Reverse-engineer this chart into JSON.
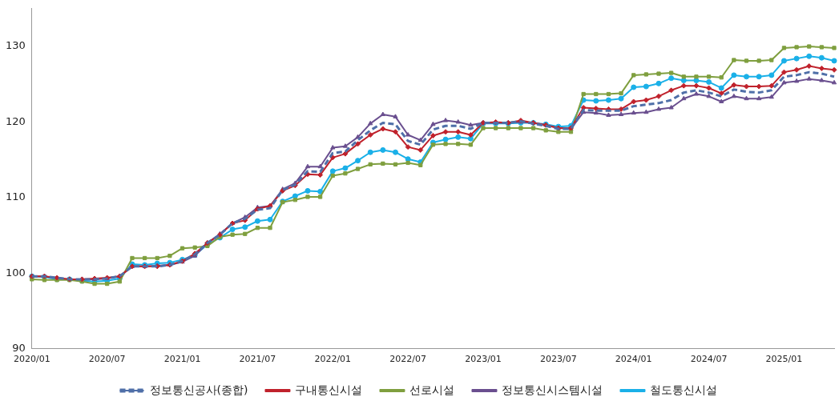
{
  "chart_data": {
    "type": "line",
    "categories": [
      "2020/01",
      null,
      null,
      null,
      null,
      null,
      "2020/07",
      null,
      null,
      null,
      null,
      null,
      "2021/01",
      null,
      null,
      null,
      null,
      null,
      "2021/07",
      null,
      null,
      null,
      null,
      null,
      "2022/01",
      null,
      null,
      null,
      null,
      null,
      "2022/07",
      null,
      null,
      null,
      null,
      null,
      "2023/01",
      null,
      null,
      null,
      null,
      null,
      "2023/07",
      null,
      null,
      null,
      null,
      null,
      "2024/01",
      null,
      null,
      null,
      null,
      null,
      "2024/07",
      null,
      null,
      null,
      null,
      null,
      "2025/01",
      null,
      null,
      null,
      null
    ],
    "ylim": [
      90,
      135
    ],
    "yticks": [
      90,
      100,
      110,
      120,
      130
    ],
    "grid": false,
    "legend": "bottom",
    "series": [
      {
        "name": "정보통신공사(종합)",
        "color": "#4f6fa8",
        "line_style": "dashed",
        "marker": "none",
        "values": [
          99.6,
          99.6,
          99.4,
          99.2,
          99.2,
          99.2,
          99.3,
          99.6,
          100.9,
          100.9,
          100.9,
          101.1,
          101.6,
          102.5,
          104.0,
          105.1,
          106.6,
          107.2,
          108.4,
          108.6,
          111.0,
          111.7,
          113.5,
          113.4,
          115.9,
          116.1,
          117.6,
          118.9,
          119.9,
          119.7,
          117.5,
          117.0,
          119.0,
          119.5,
          119.5,
          119.1,
          119.9,
          119.9,
          119.9,
          120.1,
          119.8,
          119.5,
          119.1,
          119.1,
          121.6,
          121.5,
          121.5,
          121.5,
          122.1,
          122.3,
          122.5,
          122.9,
          123.9,
          124.2,
          123.9,
          123.4,
          124.3,
          124.0,
          123.9,
          124.2,
          126.0,
          126.2,
          126.6,
          126.4,
          126.0
        ]
      },
      {
        "name": "구내통신시설",
        "color": "#c0222c",
        "line_style": "solid",
        "marker": "diamond",
        "values": [
          99.6,
          99.6,
          99.4,
          99.2,
          99.2,
          99.3,
          99.4,
          99.6,
          100.9,
          100.9,
          100.9,
          101.1,
          101.6,
          102.6,
          104.0,
          105.1,
          106.6,
          107.0,
          108.5,
          108.9,
          110.9,
          111.6,
          113.1,
          113.0,
          115.3,
          115.8,
          117.1,
          118.3,
          119.1,
          118.7,
          116.7,
          116.3,
          118.2,
          118.7,
          118.7,
          118.3,
          119.9,
          120.0,
          119.9,
          120.2,
          119.9,
          119.6,
          119.2,
          119.2,
          121.9,
          121.8,
          121.7,
          121.7,
          122.7,
          122.9,
          123.4,
          124.2,
          124.8,
          124.8,
          124.5,
          123.8,
          124.9,
          124.7,
          124.7,
          124.8,
          126.6,
          126.9,
          127.4,
          127.1,
          126.9
        ]
      },
      {
        "name": "선로시설",
        "color": "#7f9f3f",
        "line_style": "solid",
        "marker": "square",
        "values": [
          99.2,
          99.1,
          99.1,
          99.1,
          98.9,
          98.6,
          98.6,
          98.9,
          102.0,
          102.0,
          102.0,
          102.3,
          103.3,
          103.4,
          103.6,
          104.8,
          105.1,
          105.2,
          106.0,
          106.0,
          109.4,
          109.7,
          110.1,
          110.1,
          112.9,
          113.2,
          113.8,
          114.4,
          114.5,
          114.4,
          114.6,
          114.3,
          117.0,
          117.1,
          117.1,
          117.0,
          119.2,
          119.2,
          119.2,
          119.2,
          119.2,
          118.9,
          118.7,
          118.7,
          123.7,
          123.7,
          123.7,
          123.8,
          126.2,
          126.3,
          126.4,
          126.5,
          126.0,
          126.0,
          126.0,
          125.9,
          128.2,
          128.1,
          128.1,
          128.2,
          129.8,
          129.9,
          130.0,
          129.9,
          129.8
        ]
      },
      {
        "name": "정보통신시스템시설",
        "color": "#6a4f8f",
        "line_style": "solid",
        "marker": "triangle",
        "values": [
          99.6,
          99.6,
          99.3,
          99.2,
          99.2,
          99.2,
          99.3,
          99.6,
          100.9,
          100.9,
          101.0,
          101.1,
          101.5,
          102.3,
          104.0,
          105.2,
          106.6,
          107.4,
          108.7,
          108.9,
          111.1,
          111.9,
          114.1,
          114.1,
          116.6,
          116.8,
          118.0,
          119.8,
          121.0,
          120.7,
          118.3,
          117.6,
          119.7,
          120.2,
          120.0,
          119.6,
          119.9,
          119.9,
          119.9,
          120.0,
          119.9,
          119.6,
          119.2,
          119.1,
          121.3,
          121.2,
          120.9,
          121.0,
          121.2,
          121.3,
          121.7,
          121.9,
          123.1,
          123.7,
          123.4,
          122.7,
          123.4,
          123.1,
          123.1,
          123.3,
          125.2,
          125.4,
          125.7,
          125.5,
          125.2
        ]
      },
      {
        "name": "철도통신시설",
        "color": "#1ab0e8",
        "line_style": "solid",
        "marker": "circle",
        "values": [
          99.6,
          99.5,
          99.2,
          99.2,
          99.0,
          98.9,
          99.0,
          99.3,
          101.2,
          101.1,
          101.3,
          101.4,
          101.8,
          102.4,
          103.8,
          104.7,
          105.8,
          106.1,
          106.9,
          107.1,
          109.5,
          110.2,
          110.9,
          110.8,
          113.5,
          113.9,
          114.9,
          116.0,
          116.3,
          116.0,
          115.1,
          114.7,
          117.3,
          117.7,
          118.0,
          117.8,
          119.8,
          119.8,
          119.8,
          119.9,
          119.9,
          119.7,
          119.4,
          119.5,
          122.9,
          122.8,
          122.9,
          123.1,
          124.6,
          124.7,
          125.1,
          125.8,
          125.5,
          125.5,
          125.3,
          124.5,
          126.2,
          126.0,
          126.0,
          126.2,
          128.1,
          128.4,
          128.7,
          128.5,
          128.1
        ]
      }
    ]
  }
}
